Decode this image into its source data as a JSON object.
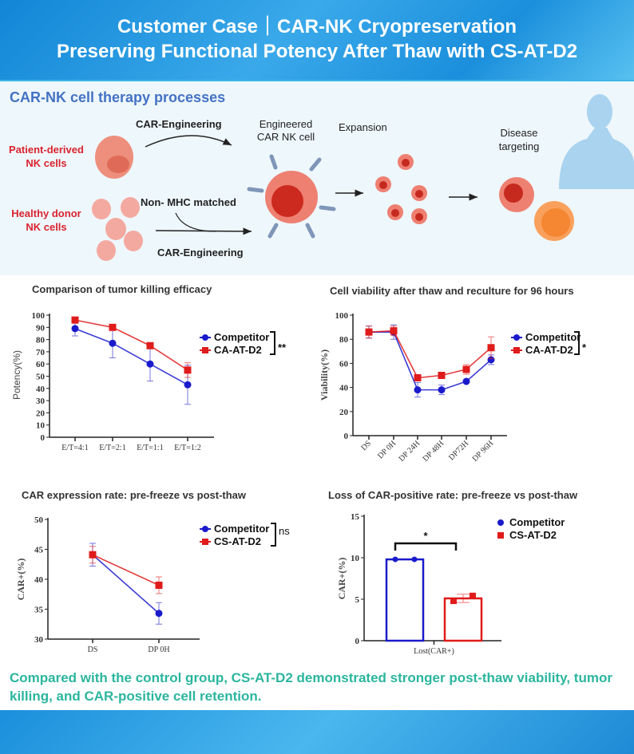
{
  "header": {
    "line1": "Customer Case｜CAR-NK Cryopreservation",
    "line2": "Preserving Functional Potency After Thaw with CS-AT-D2"
  },
  "process": {
    "title": "CAR-NK cell therapy processes",
    "patient_cells": "Patient-derived NK cells",
    "donor_cells": "Healthy donor NK cells",
    "car_eng_top": "CAR-Engineering",
    "non_mhc": "Non- MHC matched",
    "car_eng_bottom": "CAR-Engineering",
    "engineered": "Engineered CAR NK cell",
    "expansion": "Expansion",
    "disease": "Disease targeting"
  },
  "colors": {
    "competitor": "#1a1acc",
    "cs_at_d2": "#e01b1b",
    "title_blue": "#4472c4",
    "conclusion": "#2bb59e",
    "label_red": "#d9232e"
  },
  "chart_data": [
    {
      "type": "line",
      "title": "Comparison of tumor killing efficacy",
      "ylabel": "Potency(%)",
      "ylim": [
        0,
        100
      ],
      "yticks": [
        0,
        10,
        20,
        30,
        40,
        50,
        60,
        70,
        80,
        90,
        100
      ],
      "categories": [
        "E/T=4:1",
        "E/T=2:1",
        "E/T=1:1",
        "E/T=1:2"
      ],
      "series": [
        {
          "name": "Competitor",
          "values": [
            89,
            77,
            60,
            43
          ],
          "errors": [
            6,
            12,
            14,
            16
          ]
        },
        {
          "name": "CA-AT-D2",
          "values": [
            96,
            90,
            75,
            55
          ],
          "errors": [
            2,
            2,
            2,
            6
          ]
        }
      ],
      "significance": "**",
      "legend": "right"
    },
    {
      "type": "line",
      "title": "Cell viability after thaw and reculture for 96 hours",
      "ylabel": "Viability(%)",
      "ylim": [
        0,
        100
      ],
      "yticks": [
        0,
        20,
        40,
        60,
        80,
        100
      ],
      "categories": [
        "DS",
        "DP 0H",
        "DP 24H",
        "DP 48H",
        "DP72H",
        "DP 96H"
      ],
      "series": [
        {
          "name": "Competitor",
          "values": [
            86,
            86,
            38,
            38,
            45,
            63
          ],
          "errors": [
            5,
            6,
            6,
            4,
            1,
            4
          ]
        },
        {
          "name": "CA-AT-D2",
          "values": [
            86,
            87,
            48,
            50,
            55,
            73
          ],
          "errors": [
            5,
            4,
            2,
            2,
            4,
            9
          ]
        }
      ],
      "significance": "*",
      "legend": "right"
    },
    {
      "type": "line",
      "title": "CAR expression rate: pre-freeze vs post-thaw",
      "ylabel": "CAR+(%)",
      "ylim": [
        30,
        50
      ],
      "yticks": [
        30,
        35,
        40,
        45,
        50
      ],
      "categories": [
        "DS",
        "DP 0H"
      ],
      "series": [
        {
          "name": "Competitor",
          "values": [
            44.1,
            34.3
          ],
          "errors": [
            1.9,
            1.8
          ]
        },
        {
          "name": "CS-AT-D2",
          "values": [
            44.1,
            39.0
          ],
          "errors": [
            1.4,
            1.4
          ]
        }
      ],
      "significance": "ns",
      "legend": "right"
    },
    {
      "type": "bar",
      "title": "Loss of CAR-positive rate: pre-freeze vs post-thaw",
      "ylabel": "CAR+(%)",
      "ylim": [
        0,
        15
      ],
      "yticks": [
        0,
        5,
        10,
        15
      ],
      "categories": [
        "Lost(CAR+)"
      ],
      "series": [
        {
          "name": "Competitor",
          "values": [
            9.8
          ],
          "points": [
            9.8,
            9.8
          ],
          "errors": [
            0.05
          ]
        },
        {
          "name": "CS-AT-D2",
          "values": [
            5.1
          ],
          "points": [
            4.8,
            5.4
          ],
          "errors": [
            0.5
          ]
        }
      ],
      "significance": "*",
      "legend": "right"
    }
  ],
  "conclusion": "Compared with the control group, CS-AT-D2 demonstrated stronger post-thaw viability, tumor killing, and CAR-positive cell retention."
}
